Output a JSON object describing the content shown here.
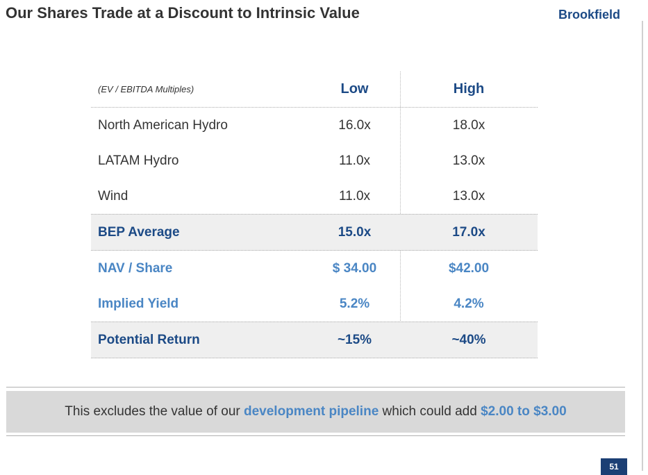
{
  "header": {
    "title": "Our Shares Trade at a Discount to Intrinsic Value",
    "logo": "Brookfield"
  },
  "table": {
    "label": "(EV / EBITDA Multiples)",
    "columns": [
      "Low",
      "High"
    ],
    "rows": [
      {
        "name": "North American Hydro",
        "low": "16.0x",
        "high": "18.0x"
      },
      {
        "name": "LATAM Hydro",
        "low": "11.0x",
        "high": "13.0x"
      },
      {
        "name": "Wind",
        "low": "11.0x",
        "high": "13.0x"
      },
      {
        "name": "BEP Average",
        "low": "15.0x",
        "high": "17.0x"
      },
      {
        "name": "NAV / Share",
        "low": "$ 34.00",
        "high": "$42.00"
      },
      {
        "name": "Implied Yield",
        "low": "5.2%",
        "high": "4.2%"
      },
      {
        "name": "Potential Return",
        "low": "~15%",
        "high": "~40%"
      }
    ]
  },
  "note": {
    "prefix": "This excludes the value of our ",
    "highlight1": "development pipeline",
    "middle": " which could add ",
    "highlight2": "$2.00 to $3.00"
  },
  "page_number": "51",
  "colors": {
    "brand_dark": "#1c4a86",
    "brand_light": "#4a86c4",
    "shade": "#efefef",
    "note_bg": "#d9d9d9"
  }
}
